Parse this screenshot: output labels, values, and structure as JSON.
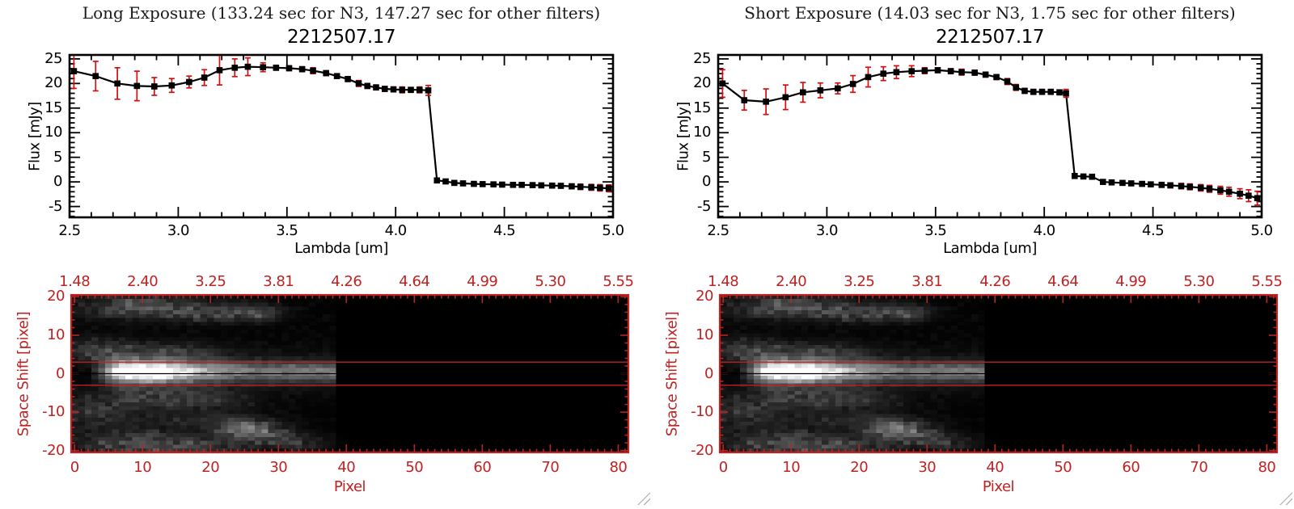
{
  "colors": {
    "background": "#ffffff",
    "plot_black": "#000000",
    "error_red": "#d01010",
    "image_red": "#bf2222",
    "grip_gray": "#b5b5b5"
  },
  "chart_data": [
    {
      "id": "long-exposure",
      "header": "Long Exposure (133.24 sec for N3, 147.27 sec for other filters)",
      "spectrum": {
        "type": "line",
        "title": "2212507.17",
        "xlabel": "Lambda [um]",
        "ylabel": "Flux [mJy]",
        "xlim": [
          2.5,
          5.0
        ],
        "ylim": [
          -7.2,
          25.8
        ],
        "xticks": [
          2.5,
          3.0,
          3.5,
          4.0,
          4.5,
          5.0
        ],
        "xtick_labels": [
          "2.5",
          "3.0",
          "3.5",
          "4.0",
          "4.5",
          "5.0"
        ],
        "yticks": [
          -5,
          0,
          5,
          10,
          15,
          20,
          25
        ],
        "ytick_labels": [
          "-5",
          "0",
          "5",
          "10",
          "15",
          "20",
          "25"
        ],
        "marker": "filled-square",
        "points_format": [
          "lambda_um",
          "flux_mJy",
          "err_mJy"
        ],
        "points": [
          [
            2.52,
            22.5,
            3.5
          ],
          [
            2.62,
            21.5,
            3.0
          ],
          [
            2.72,
            20.0,
            3.2
          ],
          [
            2.81,
            19.5,
            3.0
          ],
          [
            2.89,
            19.4,
            1.8
          ],
          [
            2.97,
            19.6,
            1.4
          ],
          [
            3.05,
            20.3,
            1.2
          ],
          [
            3.12,
            21.2,
            1.6
          ],
          [
            3.19,
            22.7,
            3.0
          ],
          [
            3.26,
            23.2,
            1.8
          ],
          [
            3.32,
            23.4,
            1.8
          ],
          [
            3.39,
            23.3,
            0.9
          ],
          [
            3.45,
            23.2,
            0.5
          ],
          [
            3.51,
            23.1,
            0.5
          ],
          [
            3.57,
            22.9,
            0.5
          ],
          [
            3.62,
            22.6,
            0.6
          ],
          [
            3.68,
            22.1,
            0.5
          ],
          [
            3.73,
            21.5,
            0.4
          ],
          [
            3.78,
            20.9,
            0.5
          ],
          [
            3.83,
            20.0,
            0.6
          ],
          [
            3.87,
            19.5,
            0.5
          ],
          [
            3.91,
            19.2,
            0.5
          ],
          [
            3.95,
            18.9,
            0.5
          ],
          [
            3.99,
            18.8,
            0.5
          ],
          [
            4.03,
            18.7,
            0.6
          ],
          [
            4.07,
            18.7,
            0.5
          ],
          [
            4.11,
            18.7,
            0.6
          ],
          [
            4.15,
            18.6,
            1.0
          ],
          [
            4.19,
            0.3,
            0.4
          ],
          [
            4.23,
            0.1,
            0.35
          ],
          [
            4.27,
            -0.2,
            0.3
          ],
          [
            4.31,
            -0.3,
            0.3
          ],
          [
            4.36,
            -0.4,
            0.3
          ],
          [
            4.4,
            -0.45,
            0.3
          ],
          [
            4.45,
            -0.5,
            0.3
          ],
          [
            4.49,
            -0.55,
            0.3
          ],
          [
            4.54,
            -0.6,
            0.3
          ],
          [
            4.58,
            -0.6,
            0.3
          ],
          [
            4.63,
            -0.65,
            0.35
          ],
          [
            4.67,
            -0.7,
            0.35
          ],
          [
            4.72,
            -0.75,
            0.4
          ],
          [
            4.76,
            -0.8,
            0.45
          ],
          [
            4.81,
            -0.9,
            0.5
          ],
          [
            4.85,
            -1.0,
            0.55
          ],
          [
            4.9,
            -1.1,
            0.6
          ],
          [
            4.94,
            -1.2,
            0.65
          ],
          [
            4.98,
            -1.3,
            0.7
          ]
        ]
      },
      "image": {
        "type": "heatmap",
        "xlabel": "Pixel",
        "ylabel": "Space Shift [pixel]",
        "top_axis_labels": [
          "1.48",
          "2.40",
          "3.25",
          "3.81",
          "4.26",
          "4.64",
          "4.99",
          "5.30",
          "5.55"
        ],
        "xticks": [
          0,
          10,
          20,
          30,
          40,
          50,
          60,
          70,
          80
        ],
        "yticks": [
          20,
          10,
          0,
          -10,
          -20
        ],
        "xlim": [
          -0.5,
          81.5
        ],
        "ylim": [
          -20.5,
          20.5
        ],
        "aperture_lines_space_shift": [
          3,
          -3
        ],
        "trace_center_line_space_shift": 0,
        "trace": {
          "x_start": 3,
          "x_end": 38,
          "rise_len": 4.5,
          "peak_x": 9.5,
          "base": 0.37,
          "peak": 0.63,
          "falloff": 70,
          "y_center": 0.5,
          "sigma_core": 1.7,
          "sigma_wing": 3.4,
          "wing_amp": 0.3
        },
        "clouds": [
          {
            "cx": 9,
            "cy": 17.5,
            "sx": 6,
            "sy": 2.2,
            "a": 0.3
          },
          {
            "cx": 20,
            "cy": 16,
            "sx": 5,
            "sy": 1.8,
            "a": 0.22
          },
          {
            "cx": 27,
            "cy": 16,
            "sx": 2.5,
            "sy": 1.5,
            "a": 0.22
          },
          {
            "cx": 12,
            "cy": 5.5,
            "sx": 7,
            "sy": 2.0,
            "a": 0.17
          },
          {
            "cx": 3,
            "cy": 6,
            "sx": 3,
            "sy": 2.5,
            "a": 0.18
          },
          {
            "cx": 10,
            "cy": -6.5,
            "sx": 8,
            "sy": 2.2,
            "a": 0.2
          },
          {
            "cx": 20,
            "cy": -7,
            "sx": 4,
            "sy": 1.8,
            "a": 0.12
          },
          {
            "cx": 2,
            "cy": -11,
            "sx": 4,
            "sy": 2,
            "a": 0.18
          },
          {
            "cx": 8,
            "cy": -18,
            "sx": 6,
            "sy": 2.5,
            "a": 0.25
          },
          {
            "cx": 18,
            "cy": -19,
            "sx": 6,
            "sy": 2,
            "a": 0.18
          },
          {
            "cx": 27,
            "cy": -15,
            "sx": 3,
            "sy": 2,
            "a": 0.38
          },
          {
            "cx": 23,
            "cy": -13.5,
            "sx": 3,
            "sy": 2,
            "a": 0.2
          },
          {
            "cx": 33,
            "cy": -18,
            "sx": 3,
            "sy": 1.5,
            "a": 0.18
          },
          {
            "cx": 14,
            "cy": -12,
            "sx": 5,
            "sy": 1.5,
            "a": 0.12
          }
        ],
        "noise_seed": 7
      }
    },
    {
      "id": "short-exposure",
      "header": "Short Exposure (14.03 sec for N3, 1.75 sec for other filters)",
      "spectrum": {
        "type": "line",
        "title": "2212507.17",
        "xlabel": "Lambda [um]",
        "ylabel": "Flux [mJy]",
        "xlim": [
          2.5,
          5.0
        ],
        "ylim": [
          -7.2,
          25.8
        ],
        "xticks": [
          2.5,
          3.0,
          3.5,
          4.0,
          4.5,
          5.0
        ],
        "xtick_labels": [
          "2.5",
          "3.0",
          "3.5",
          "4.0",
          "4.5",
          "5.0"
        ],
        "yticks": [
          -5,
          0,
          5,
          10,
          15,
          20,
          25
        ],
        "ytick_labels": [
          "-5",
          "0",
          "5",
          "10",
          "15",
          "20",
          "25"
        ],
        "marker": "filled-square",
        "points_format": [
          "lambda_um",
          "flux_mJy",
          "err_mJy"
        ],
        "points": [
          [
            2.52,
            20.0,
            2.8
          ],
          [
            2.62,
            16.6,
            2.0
          ],
          [
            2.72,
            16.3,
            2.6
          ],
          [
            2.81,
            17.2,
            2.5
          ],
          [
            2.89,
            18.2,
            2.0
          ],
          [
            2.97,
            18.6,
            1.5
          ],
          [
            3.05,
            19.0,
            1.1
          ],
          [
            3.12,
            19.9,
            1.7
          ],
          [
            3.19,
            21.3,
            2.0
          ],
          [
            3.26,
            22.0,
            1.4
          ],
          [
            3.32,
            22.3,
            1.3
          ],
          [
            3.39,
            22.5,
            1.1
          ],
          [
            3.45,
            22.6,
            0.6
          ],
          [
            3.51,
            22.7,
            0.5
          ],
          [
            3.57,
            22.5,
            0.5
          ],
          [
            3.62,
            22.3,
            0.6
          ],
          [
            3.68,
            22.2,
            0.5
          ],
          [
            3.73,
            21.8,
            0.5
          ],
          [
            3.78,
            21.3,
            0.5
          ],
          [
            3.83,
            20.4,
            0.6
          ],
          [
            3.87,
            19.2,
            0.6
          ],
          [
            3.91,
            18.5,
            0.5
          ],
          [
            3.95,
            18.3,
            0.5
          ],
          [
            3.99,
            18.3,
            0.5
          ],
          [
            4.03,
            18.3,
            0.5
          ],
          [
            4.07,
            18.2,
            0.5
          ],
          [
            4.1,
            18.0,
            0.8
          ],
          [
            4.14,
            1.2,
            0.4
          ],
          [
            4.18,
            1.1,
            0.35
          ],
          [
            4.22,
            1.05,
            0.35
          ],
          [
            4.27,
            0.0,
            0.35
          ],
          [
            4.31,
            -0.1,
            0.35
          ],
          [
            4.36,
            -0.2,
            0.4
          ],
          [
            4.4,
            -0.3,
            0.4
          ],
          [
            4.45,
            -0.4,
            0.4
          ],
          [
            4.49,
            -0.5,
            0.45
          ],
          [
            4.54,
            -0.6,
            0.5
          ],
          [
            4.58,
            -0.7,
            0.5
          ],
          [
            4.63,
            -0.85,
            0.55
          ],
          [
            4.67,
            -1.0,
            0.6
          ],
          [
            4.72,
            -1.2,
            0.65
          ],
          [
            4.76,
            -1.4,
            0.7
          ],
          [
            4.81,
            -1.7,
            0.8
          ],
          [
            4.85,
            -2.0,
            0.9
          ],
          [
            4.9,
            -2.4,
            1.0
          ],
          [
            4.94,
            -2.8,
            1.2
          ],
          [
            4.98,
            -3.3,
            1.4
          ]
        ]
      },
      "image": {
        "type": "heatmap",
        "xlabel": "Pixel",
        "ylabel": "Space Shift [pixel]",
        "top_axis_labels": [
          "1.48",
          "2.40",
          "3.25",
          "3.81",
          "4.26",
          "4.64",
          "4.99",
          "5.30",
          "5.55"
        ],
        "xticks": [
          0,
          10,
          20,
          30,
          40,
          50,
          60,
          70,
          80
        ],
        "yticks": [
          20,
          10,
          0,
          -10,
          -20
        ],
        "xlim": [
          -0.5,
          81.5
        ],
        "ylim": [
          -20.5,
          20.5
        ],
        "aperture_lines_space_shift": [
          3,
          -3
        ],
        "trace_center_line_space_shift": 0,
        "trace": {
          "x_start": 3,
          "x_end": 38,
          "rise_len": 4.5,
          "peak_x": 9.5,
          "base": 0.37,
          "peak": 0.63,
          "falloff": 70,
          "y_center": 0.5,
          "sigma_core": 1.7,
          "sigma_wing": 3.4,
          "wing_amp": 0.3
        },
        "clouds": [
          {
            "cx": 9,
            "cy": 17.5,
            "sx": 6,
            "sy": 2.2,
            "a": 0.3
          },
          {
            "cx": 20,
            "cy": 16,
            "sx": 5,
            "sy": 1.8,
            "a": 0.22
          },
          {
            "cx": 27,
            "cy": 16,
            "sx": 2.5,
            "sy": 1.5,
            "a": 0.22
          },
          {
            "cx": 12,
            "cy": 5.5,
            "sx": 7,
            "sy": 2.0,
            "a": 0.17
          },
          {
            "cx": 3,
            "cy": 6,
            "sx": 3,
            "sy": 2.5,
            "a": 0.18
          },
          {
            "cx": 10,
            "cy": -6.5,
            "sx": 8,
            "sy": 2.2,
            "a": 0.2
          },
          {
            "cx": 20,
            "cy": -7,
            "sx": 4,
            "sy": 1.8,
            "a": 0.12
          },
          {
            "cx": 2,
            "cy": -11,
            "sx": 4,
            "sy": 2,
            "a": 0.18
          },
          {
            "cx": 8,
            "cy": -18,
            "sx": 6,
            "sy": 2.5,
            "a": 0.25
          },
          {
            "cx": 18,
            "cy": -19,
            "sx": 6,
            "sy": 2,
            "a": 0.18
          },
          {
            "cx": 27,
            "cy": -15,
            "sx": 3,
            "sy": 2,
            "a": 0.38
          },
          {
            "cx": 23,
            "cy": -13.5,
            "sx": 3,
            "sy": 2,
            "a": 0.2
          },
          {
            "cx": 33,
            "cy": -18,
            "sx": 3,
            "sy": 1.5,
            "a": 0.18
          },
          {
            "cx": 14,
            "cy": -12,
            "sx": 5,
            "sy": 1.5,
            "a": 0.12
          }
        ],
        "noise_seed": 7
      }
    }
  ]
}
